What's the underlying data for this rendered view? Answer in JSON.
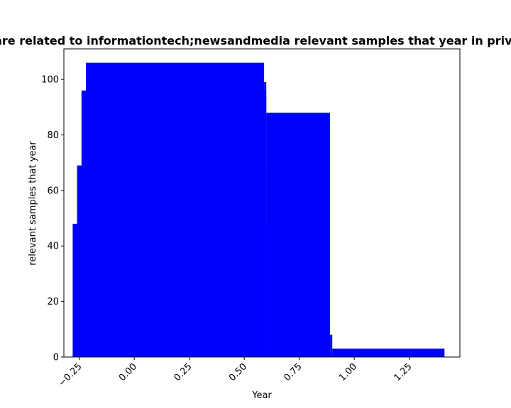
{
  "chart_data": {
    "type": "bar",
    "title": "Share related to informationtech;newsandmedia relevant samples that year in private",
    "xlabel": "Year",
    "ylabel": "relevant samples that year",
    "xlim": [
      -0.32,
      1.48
    ],
    "ylim": [
      0,
      111
    ],
    "x_ticks": [
      {
        "value": -0.25,
        "label": "−0.25"
      },
      {
        "value": 0.0,
        "label": "0.00"
      },
      {
        "value": 0.25,
        "label": "0.25"
      },
      {
        "value": 0.5,
        "label": "0.50"
      },
      {
        "value": 0.75,
        "label": "0.75"
      },
      {
        "value": 1.0,
        "label": "1.00"
      },
      {
        "value": 1.25,
        "label": "1.25"
      }
    ],
    "y_ticks": [
      {
        "value": 0,
        "label": "0"
      },
      {
        "value": 20,
        "label": "20"
      },
      {
        "value": 40,
        "label": "40"
      },
      {
        "value": 60,
        "label": "60"
      },
      {
        "value": 80,
        "label": "80"
      },
      {
        "value": 100,
        "label": "100"
      }
    ],
    "grid": false,
    "bar_color": "#0000ff",
    "bars": [
      {
        "x_start": -0.28,
        "x_end": 0.6,
        "value": 48
      },
      {
        "x_start": -0.26,
        "x_end": 0.6,
        "value": 69
      },
      {
        "x_start": -0.24,
        "x_end": 0.6,
        "value": 96
      },
      {
        "x_start": -0.22,
        "x_end": 0.59,
        "value": 106
      },
      {
        "x_start": 0.59,
        "x_end": 0.6,
        "value": 99
      },
      {
        "x_start": 0.6,
        "x_end": 0.89,
        "value": 88
      },
      {
        "x_start": 0.89,
        "x_end": 0.9,
        "value": 8
      },
      {
        "x_start": 0.9,
        "x_end": 1.41,
        "value": 3
      }
    ]
  }
}
